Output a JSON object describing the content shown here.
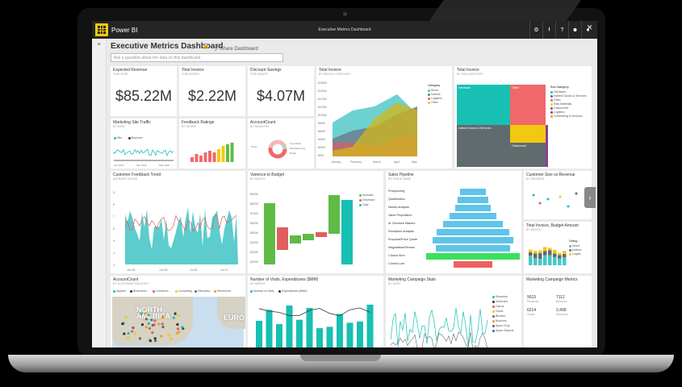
{
  "app": {
    "name": "Power BI",
    "window_title": "Executive Metrics Dashboard"
  },
  "topbar_icons": [
    "gear-icon",
    "download-icon",
    "help-icon",
    "smiley-icon",
    "user-icon"
  ],
  "dashboard": {
    "title": "Executive Metrics Dashboard",
    "share_label": "Share Dashboard",
    "qa_placeholder": "Ask a question about the data on this dashboard"
  },
  "kpis": [
    {
      "title": "Expected Revenue",
      "subtitle": "THIS YEAR",
      "value": "$85.22M"
    },
    {
      "title": "Total Invoice",
      "subtitle": "THIS MONTH",
      "value": "$2.22M"
    },
    {
      "title": "Discount Savings",
      "subtitle": "THIS MONTH",
      "value": "$4.07M"
    }
  ],
  "tiles": {
    "total_invoice_area": {
      "title": "Total Invoice",
      "subtitle": "BY MONTH, CATEGORY",
      "legend_title": "Category",
      "legend": [
        "Direct",
        "Indirect",
        "Logistics",
        "Other"
      ],
      "colors": [
        "#4ac6c6",
        "#6b7f8e",
        "#e05e5e",
        "#f2c811"
      ],
      "y_ticks": [
        "$180M",
        "$160M",
        "$140M",
        "$120M",
        "$100M",
        "$80M",
        "$60M",
        "$40M",
        "$20M",
        "$0M"
      ],
      "x_ticks": [
        "January",
        "February",
        "March",
        "April",
        "May"
      ]
    },
    "total_invoice_treemap": {
      "title": "Total Invoice",
      "subtitle": "BY SUB CATEGORY",
      "legend_title": "Sub Category",
      "cells": [
        "Hardware",
        "Other",
        "Indirect Goods & Services",
        "Outsourced"
      ],
      "legend": [
        "Hardware",
        "Indirect Goods & Services",
        "Other",
        "Raw Materials",
        "Outsourced",
        "Logistics",
        "Contracting & Services"
      ]
    },
    "site_traffic": {
      "title": "Marketing Site Traffic",
      "subtitle": "BY DATE",
      "legend": [
        "Hits",
        "Bounces"
      ],
      "x_ticks": [
        "Jan 2015",
        "Mar 2015",
        "May 2015"
      ]
    },
    "feedback": {
      "title": "Feedback Ratings",
      "subtitle": "BY SCORE"
    },
    "accountcount_donut": {
      "title": "AccountCount",
      "subtitle": "BY INDUSTRY",
      "labels": [
        "Consulting",
        "Manufacturing",
        "Retail",
        "Other"
      ]
    },
    "customer_feedback": {
      "title": "Customer Feedback Trend",
      "subtitle": "AVERAGE SCORE",
      "y_ticks": [
        "9",
        "8",
        "7",
        "6",
        "5",
        "4",
        "3"
      ],
      "x_ticks": [
        "Jan 05",
        "Jun 05",
        "Jul 05",
        "Jul 12"
      ]
    },
    "variance": {
      "title": "Varience to Budget",
      "subtitle": "BY MONTH",
      "legend": [
        "Increase",
        "Decrease",
        "Total"
      ],
      "y_ticks": [
        "$900K",
        "$800K",
        "$700K",
        "$600K",
        "$500K",
        "$400K",
        "$300K",
        "$200K",
        "$100K"
      ]
    },
    "pipeline": {
      "title": "Sales Pipeline",
      "subtitle": "BY STAGE NAME",
      "stages": [
        "Prospecting",
        "Qualification",
        "Needs Analysis",
        "Value Proposition",
        "Id. Decision Makers",
        "Reception Analysis",
        "Proposal/Price Quote",
        "Negotiation/Review",
        "Closed Won",
        "Closed Lost"
      ],
      "widths": [
        0.28,
        0.32,
        0.38,
        0.5,
        0.64,
        0.78,
        0.86,
        0.8,
        1.0,
        0.42
      ]
    },
    "size_revenue": {
      "title": "Customer Size vs Revenue",
      "subtitle": "BY SEGMENT"
    },
    "invoice_budget": {
      "title": "Total Invoice, Budget Amount",
      "subtitle": "BY MONTH",
      "legend_title": "Categ...",
      "legend": [
        "Direct",
        "Indirect",
        "Logisti..."
      ]
    },
    "accountcount_map": {
      "title": "AccountCount",
      "subtitle": "BY CUSTOMER INDUSTRY",
      "legend": [
        "Apparel",
        "Biotechnol...",
        "Construct...",
        "Consulting",
        "Education",
        "Electronics"
      ],
      "map_labels": [
        "NORTH AMERICA",
        "EURO"
      ]
    },
    "visits": {
      "title": "Number of Visits, Expenditures ($MM)",
      "subtitle": "BY MONTH",
      "legend": [
        "Number of Visits",
        "Expenditures ($MM)"
      ]
    },
    "campaign_stats": {
      "title": "Marketing Campaign Stats",
      "subtitle": "BY DATE",
      "legend": [
        "Requests",
        "Delivered",
        "Opens",
        "Clicks",
        "Blocked",
        "Bounces",
        "Spam Drop",
        "Spam Reports"
      ]
    },
    "campaign_metrics": {
      "title": "Marketing Campaign Metrics",
      "cells": [
        {
          "value": "9515",
          "label": "Requests"
        },
        {
          "value": "7112",
          "label": "Bounces"
        },
        {
          "value": "6214",
          "label": "Clicks"
        },
        {
          "value": "2,499",
          "label": "Delivered"
        }
      ]
    }
  }
}
